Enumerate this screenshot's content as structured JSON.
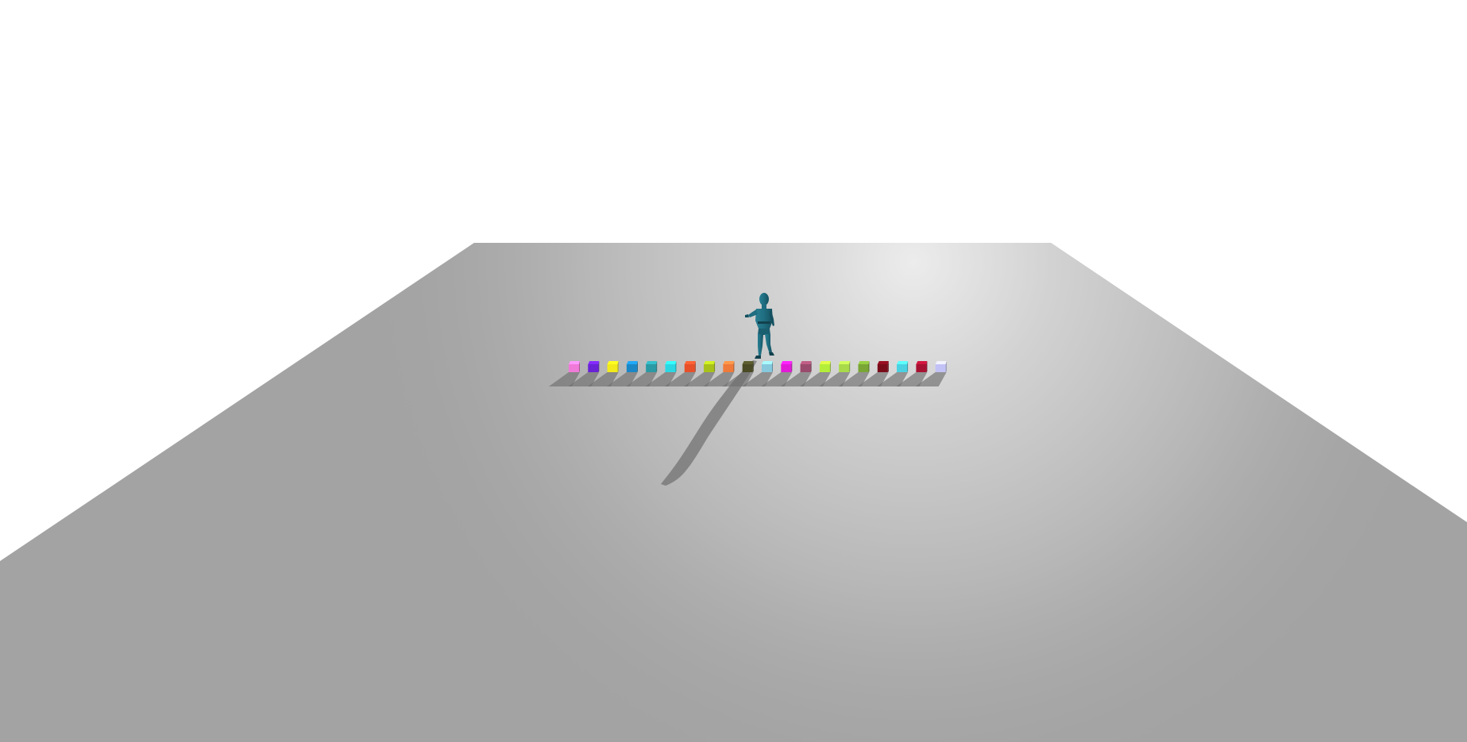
{
  "scene": {
    "background_color": "#ffffff",
    "floor_color": "#a3a3a3",
    "floor_highlight_color": "#ececec",
    "shadow_color": "#6e6e6e",
    "character": {
      "icon": "humanoid-figure",
      "color": "#1f6d80"
    },
    "cubes": [
      {
        "color": "#f07ad8"
      },
      {
        "color": "#6a22d6"
      },
      {
        "color": "#f2ea1a"
      },
      {
        "color": "#1a88c6"
      },
      {
        "color": "#2a9aa4"
      },
      {
        "color": "#2ad8e4"
      },
      {
        "color": "#e8502a"
      },
      {
        "color": "#a8c21a"
      },
      {
        "color": "#f07a3a"
      },
      {
        "color": "#4a4a26"
      },
      {
        "color": "#86c8dc"
      },
      {
        "color": "#e21ad8"
      },
      {
        "color": "#9a4a6c"
      },
      {
        "color": "#b4ee3a"
      },
      {
        "color": "#a8da4a"
      },
      {
        "color": "#7aa636"
      },
      {
        "color": "#7a0c1a"
      },
      {
        "color": "#4ad2e2"
      },
      {
        "color": "#a81232"
      },
      {
        "color": "#c2c2f6"
      }
    ]
  }
}
